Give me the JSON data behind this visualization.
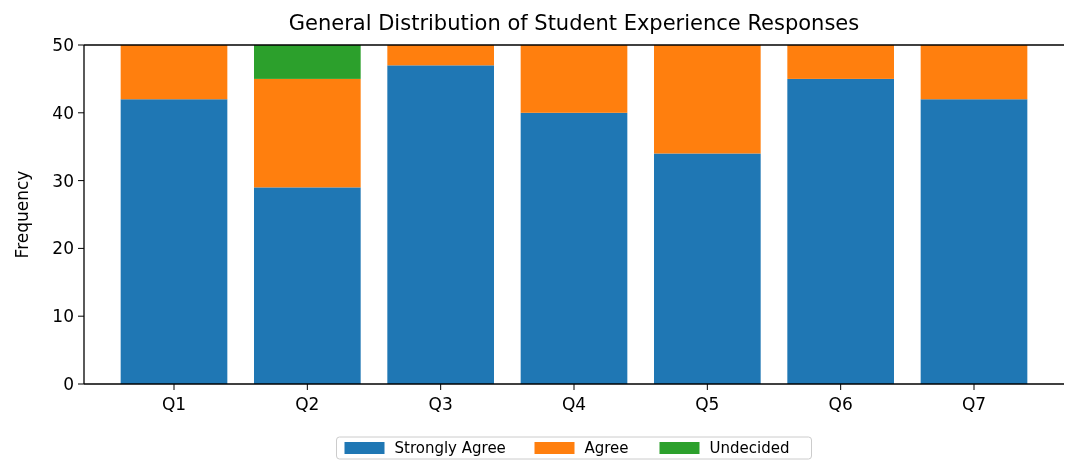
{
  "chart_data": {
    "type": "bar",
    "title": "General Distribution of Student Experience Responses",
    "ylabel": "Frequency",
    "categories": [
      "Q1",
      "Q2",
      "Q3",
      "Q4",
      "Q5",
      "Q6",
      "Q7"
    ],
    "stacked": true,
    "series": [
      {
        "name": "Strongly Agree",
        "color": "#1f77b4",
        "values": [
          42,
          29,
          47,
          40,
          34,
          45,
          42
        ]
      },
      {
        "name": "Agree",
        "color": "#ff7f0e",
        "values": [
          8,
          16,
          3,
          10,
          16,
          5,
          8
        ]
      },
      {
        "name": "Undecided",
        "color": "#2ca02c",
        "values": [
          0,
          5,
          0,
          0,
          0,
          0,
          0
        ]
      }
    ],
    "ylim": [
      0,
      50
    ],
    "yticks": [
      0,
      10,
      20,
      30,
      40,
      50
    ],
    "legend": "bottom"
  }
}
